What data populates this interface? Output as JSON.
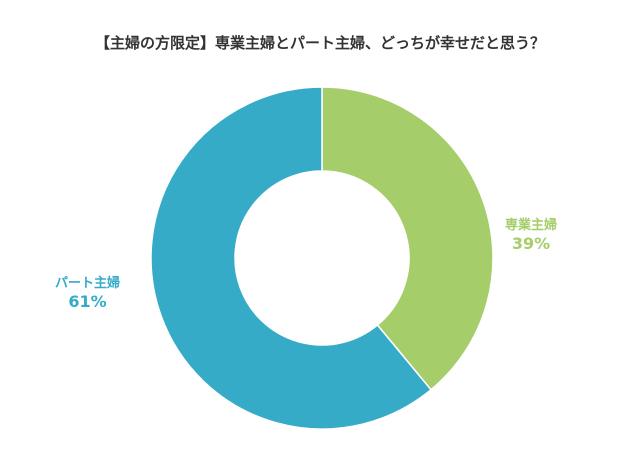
{
  "chart_data": {
    "type": "pie",
    "title": "【主婦の方限定】専業主婦とパート主婦、どっちが幸せだと思う？",
    "donut": true,
    "slices": [
      {
        "label": "専業主婦",
        "value": 39,
        "value_label": "39%",
        "color": "#a5cd6a"
      },
      {
        "label": "パート主婦",
        "value": 61,
        "value_label": "61%",
        "color": "#36abc8"
      }
    ]
  }
}
